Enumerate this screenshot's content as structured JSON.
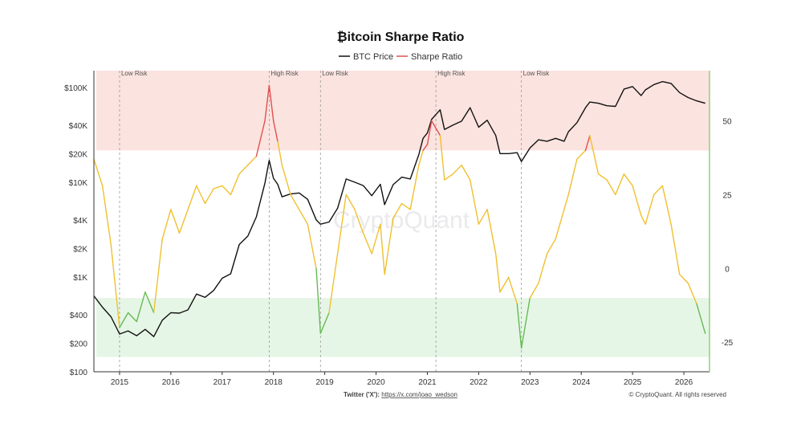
{
  "chart_data": {
    "type": "line",
    "title": "₿itcoin Sharpe Ratio",
    "watermark": "CryptoQuant",
    "footer": {
      "twitter_label": "Twitter ('X'): ",
      "twitter_url": "https://x.com/joao_wedson",
      "copyright": "© CryptoQuant. All rights reserved"
    },
    "legend": [
      {
        "name": "BTC Price",
        "color": "#111111"
      },
      {
        "name": "Sharpe Ratio",
        "color": "#e05050"
      }
    ],
    "x_ticks": [
      "2015",
      "2016",
      "2017",
      "2018",
      "2019",
      "2020",
      "2021",
      "2022",
      "2023",
      "2024",
      "2025",
      "2026"
    ],
    "x_range": [
      "2014-07",
      "2026-07"
    ],
    "y_left": {
      "scale": "log",
      "range": [
        100,
        150000
      ],
      "ticks": [
        {
          "v": 100,
          "label": "$100"
        },
        {
          "v": 200,
          "label": "$200"
        },
        {
          "v": 400,
          "label": "$400"
        },
        {
          "v": 1000,
          "label": "$1K"
        },
        {
          "v": 2000,
          "label": "$2K"
        },
        {
          "v": 4000,
          "label": "$4K"
        },
        {
          "v": 10000,
          "label": "$10K"
        },
        {
          "v": 20000,
          "label": "$20K"
        },
        {
          "v": 40000,
          "label": "$40K"
        },
        {
          "v": 100000,
          "label": "$100K"
        }
      ]
    },
    "y_right": {
      "scale": "linear",
      "range": [
        -35,
        67
      ],
      "ticks": [
        {
          "v": -25,
          "label": "-25"
        },
        {
          "v": 0,
          "label": "0"
        },
        {
          "v": 25,
          "label": "25"
        },
        {
          "v": 50,
          "label": "50"
        }
      ]
    },
    "zones": [
      {
        "name": "high-risk-zone",
        "from": 40,
        "to": 67,
        "color": "#fbe3df"
      },
      {
        "name": "low-risk-zone",
        "from": -30,
        "to": -10,
        "color": "#e6f6e6"
      }
    ],
    "markers": [
      {
        "date": "2015-01",
        "label": "Low Risk"
      },
      {
        "date": "2017-12",
        "label": "High Risk"
      },
      {
        "date": "2018-12",
        "label": "Low Risk"
      },
      {
        "date": "2021-03",
        "label": "High Risk"
      },
      {
        "date": "2022-11",
        "label": "Low Risk"
      }
    ],
    "sharpe_colors": {
      "high": "#e05050",
      "mid": "#f0c030",
      "low": "#66bb55",
      "extreme_low": "#5555cc"
    },
    "series": [
      {
        "name": "BTC Price",
        "axis": "left",
        "points": [
          [
            "2014-07",
            630
          ],
          [
            "2014-09",
            480
          ],
          [
            "2014-11",
            380
          ],
          [
            "2015-01",
            250
          ],
          [
            "2015-03",
            270
          ],
          [
            "2015-05",
            240
          ],
          [
            "2015-07",
            280
          ],
          [
            "2015-09",
            235
          ],
          [
            "2015-11",
            350
          ],
          [
            "2016-01",
            420
          ],
          [
            "2016-03",
            415
          ],
          [
            "2016-05",
            450
          ],
          [
            "2016-07",
            660
          ],
          [
            "2016-09",
            610
          ],
          [
            "2016-11",
            720
          ],
          [
            "2017-01",
            970
          ],
          [
            "2017-03",
            1080
          ],
          [
            "2017-05",
            2200
          ],
          [
            "2017-07",
            2700
          ],
          [
            "2017-09",
            4300
          ],
          [
            "2017-11",
            9800
          ],
          [
            "2017-12",
            17000
          ],
          [
            "2018-01",
            11000
          ],
          [
            "2018-02",
            9500
          ],
          [
            "2018-03",
            7000
          ],
          [
            "2018-05",
            7500
          ],
          [
            "2018-07",
            7700
          ],
          [
            "2018-09",
            6600
          ],
          [
            "2018-11",
            4000
          ],
          [
            "2018-12",
            3600
          ],
          [
            "2019-02",
            3800
          ],
          [
            "2019-04",
            5300
          ],
          [
            "2019-06",
            10800
          ],
          [
            "2019-08",
            10000
          ],
          [
            "2019-10",
            9200
          ],
          [
            "2019-12",
            7200
          ],
          [
            "2020-02",
            9500
          ],
          [
            "2020-03",
            5800
          ],
          [
            "2020-05",
            9400
          ],
          [
            "2020-07",
            11300
          ],
          [
            "2020-09",
            10800
          ],
          [
            "2020-11",
            19500
          ],
          [
            "2020-12",
            29000
          ],
          [
            "2021-01",
            33000
          ],
          [
            "2021-02",
            46000
          ],
          [
            "2021-04",
            58000
          ],
          [
            "2021-05",
            36000
          ],
          [
            "2021-07",
            40000
          ],
          [
            "2021-09",
            44000
          ],
          [
            "2021-11",
            61000
          ],
          [
            "2022-01",
            38000
          ],
          [
            "2022-03",
            45000
          ],
          [
            "2022-05",
            31000
          ],
          [
            "2022-06",
            20000
          ],
          [
            "2022-08",
            20000
          ],
          [
            "2022-10",
            20500
          ],
          [
            "2022-11",
            16500
          ],
          [
            "2023-01",
            23000
          ],
          [
            "2023-03",
            28000
          ],
          [
            "2023-05",
            27000
          ],
          [
            "2023-07",
            29000
          ],
          [
            "2023-09",
            27000
          ],
          [
            "2023-10",
            34000
          ],
          [
            "2023-12",
            42500
          ],
          [
            "2024-02",
            61000
          ],
          [
            "2024-03",
            70000
          ],
          [
            "2024-05",
            68000
          ],
          [
            "2024-07",
            64000
          ],
          [
            "2024-09",
            63000
          ],
          [
            "2024-11",
            96000
          ],
          [
            "2025-01",
            102000
          ],
          [
            "2025-03",
            82000
          ],
          [
            "2025-04",
            94000
          ],
          [
            "2025-06",
            107000
          ],
          [
            "2025-08",
            115000
          ],
          [
            "2025-10",
            110000
          ],
          [
            "2025-12",
            88000
          ],
          [
            "2026-02",
            78000
          ],
          [
            "2026-04",
            72000
          ],
          [
            "2026-06",
            68000
          ]
        ]
      },
      {
        "name": "Sharpe Ratio",
        "axis": "right",
        "points": [
          [
            "2014-07",
            37
          ],
          [
            "2014-09",
            28
          ],
          [
            "2014-11",
            8
          ],
          [
            "2015-01",
            -20
          ],
          [
            "2015-03",
            -15
          ],
          [
            "2015-05",
            -18
          ],
          [
            "2015-07",
            -8
          ],
          [
            "2015-09",
            -15
          ],
          [
            "2015-11",
            10
          ],
          [
            "2016-01",
            20
          ],
          [
            "2016-03",
            12
          ],
          [
            "2016-05",
            20
          ],
          [
            "2016-07",
            28
          ],
          [
            "2016-09",
            22
          ],
          [
            "2016-11",
            27
          ],
          [
            "2017-01",
            28
          ],
          [
            "2017-03",
            25
          ],
          [
            "2017-05",
            32
          ],
          [
            "2017-07",
            35
          ],
          [
            "2017-09",
            38
          ],
          [
            "2017-11",
            50
          ],
          [
            "2017-12",
            62
          ],
          [
            "2018-01",
            50
          ],
          [
            "2018-02",
            43
          ],
          [
            "2018-03",
            35
          ],
          [
            "2018-05",
            25
          ],
          [
            "2018-07",
            20
          ],
          [
            "2018-09",
            15
          ],
          [
            "2018-11",
            0
          ],
          [
            "2018-12",
            -22
          ],
          [
            "2019-02",
            -15
          ],
          [
            "2019-04",
            5
          ],
          [
            "2019-06",
            25
          ],
          [
            "2019-08",
            20
          ],
          [
            "2019-10",
            12
          ],
          [
            "2019-12",
            5
          ],
          [
            "2020-02",
            15
          ],
          [
            "2020-03",
            -2
          ],
          [
            "2020-05",
            17
          ],
          [
            "2020-07",
            22
          ],
          [
            "2020-09",
            20
          ],
          [
            "2020-11",
            35
          ],
          [
            "2020-12",
            40
          ],
          [
            "2021-01",
            42
          ],
          [
            "2021-02",
            50
          ],
          [
            "2021-04",
            45
          ],
          [
            "2021-05",
            30
          ],
          [
            "2021-07",
            32
          ],
          [
            "2021-09",
            35
          ],
          [
            "2021-11",
            30
          ],
          [
            "2022-01",
            15
          ],
          [
            "2022-03",
            20
          ],
          [
            "2022-05",
            5
          ],
          [
            "2022-06",
            -8
          ],
          [
            "2022-08",
            -3
          ],
          [
            "2022-10",
            -12
          ],
          [
            "2022-11",
            -27
          ],
          [
            "2023-01",
            -10
          ],
          [
            "2023-03",
            -5
          ],
          [
            "2023-05",
            5
          ],
          [
            "2023-07",
            10
          ],
          [
            "2023-09",
            20
          ],
          [
            "2023-10",
            25
          ],
          [
            "2023-12",
            37
          ],
          [
            "2024-02",
            40
          ],
          [
            "2024-03",
            45
          ],
          [
            "2024-05",
            32
          ],
          [
            "2024-07",
            30
          ],
          [
            "2024-09",
            25
          ],
          [
            "2024-11",
            32
          ],
          [
            "2025-01",
            28
          ],
          [
            "2025-03",
            18
          ],
          [
            "2025-04",
            15
          ],
          [
            "2025-06",
            25
          ],
          [
            "2025-08",
            28
          ],
          [
            "2025-10",
            15
          ],
          [
            "2025-12",
            -2
          ],
          [
            "2026-02",
            -5
          ],
          [
            "2026-04",
            -12
          ],
          [
            "2026-06",
            -22
          ]
        ]
      }
    ]
  }
}
